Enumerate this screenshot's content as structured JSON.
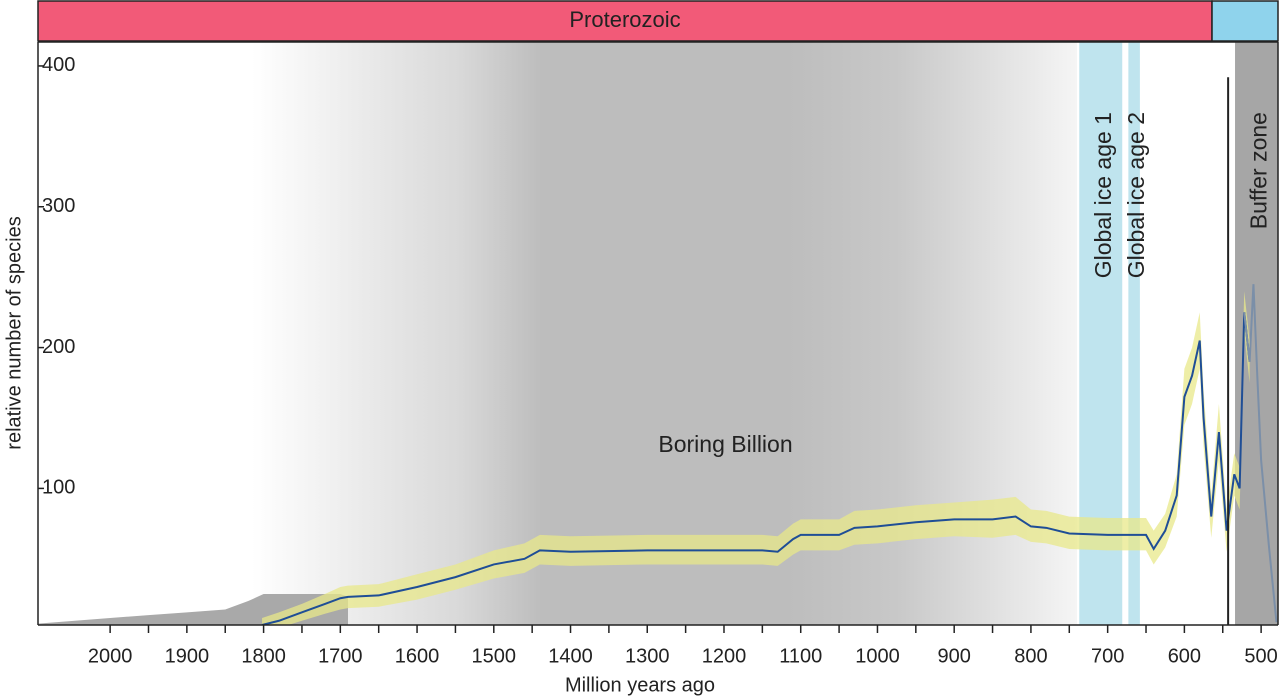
{
  "chart_data": {
    "type": "line",
    "xlabel": "Million years ago",
    "ylabel": "relative number of species",
    "xlim": [
      2094,
      478
    ],
    "ylim": [
      3,
      417
    ],
    "xticks": [
      2000,
      1900,
      1800,
      1700,
      1600,
      1500,
      1400,
      1300,
      1200,
      1100,
      1000,
      900,
      800,
      700,
      600,
      500
    ],
    "xminorticks": [
      1950,
      1850,
      1750,
      1650,
      1550,
      1450,
      1350,
      1250,
      1150,
      1050,
      950,
      850,
      750,
      650,
      550
    ],
    "yticks": [
      100,
      200,
      300,
      400
    ],
    "eras": [
      {
        "label": "Proterozoic",
        "range": [
          2094,
          564
        ],
        "color": "#f25a78"
      },
      {
        "range": [
          564,
          478
        ],
        "color": "#8fd3ec"
      }
    ],
    "shade": {
      "label": "Boring Billion",
      "range": [
        1815,
        740
      ],
      "label_x": 1198,
      "label_y": 130
    },
    "regions": [
      {
        "label": "Global ice age 1",
        "range": [
          737,
          681
        ],
        "color": "#bfe4ee"
      },
      {
        "label": "Global ice age 2",
        "range": [
          673,
          658
        ],
        "color": "#bfe4ee"
      },
      {
        "label": "Buffer zone",
        "range": [
          534,
          478
        ],
        "color": "#a6a6a6"
      }
    ],
    "area": {
      "color": "#a9a9a9",
      "x": [
        2094,
        2000,
        1950,
        1900,
        1850,
        1820,
        1800,
        1700,
        1690
      ],
      "values": [
        4,
        8,
        10,
        12,
        14,
        20,
        25,
        25,
        23
      ]
    },
    "band": {
      "color": "#e8e88a",
      "x": [
        1802,
        1780,
        1750,
        1720,
        1700,
        1690,
        1650,
        1600,
        1550,
        1500,
        1460,
        1440,
        1400,
        1300,
        1200,
        1150,
        1130,
        1110,
        1100,
        1050,
        1030,
        1000,
        950,
        900,
        850,
        820,
        800,
        780,
        750,
        700,
        650,
        640,
        625,
        610,
        600,
        590,
        580,
        575,
        565,
        555,
        545,
        535,
        528,
        522,
        515
      ],
      "upper": [
        8,
        12,
        18,
        25,
        30,
        31,
        32,
        39,
        46,
        56,
        61,
        67,
        66,
        67,
        67,
        67,
        66,
        75,
        78,
        78,
        84,
        85,
        88,
        90,
        92,
        94,
        85,
        84,
        80,
        79,
        79,
        70,
        82,
        110,
        185,
        200,
        225,
        170,
        95,
        160,
        85,
        125,
        115,
        240,
        205
      ],
      "lower": [
        0,
        1,
        6,
        11,
        14,
        15,
        16,
        21,
        28,
        36,
        40,
        46,
        45,
        46,
        46,
        46,
        45,
        53,
        56,
        56,
        60,
        61,
        64,
        66,
        65,
        67,
        62,
        61,
        57,
        56,
        56,
        46,
        58,
        80,
        145,
        160,
        185,
        130,
        65,
        120,
        55,
        95,
        85,
        210,
        175
      ]
    },
    "series": [
      {
        "color": "#1f4e96",
        "x": [
          1802,
          1780,
          1750,
          1720,
          1700,
          1690,
          1650,
          1600,
          1550,
          1500,
          1460,
          1440,
          1400,
          1300,
          1200,
          1150,
          1130,
          1110,
          1100,
          1050,
          1030,
          1000,
          950,
          900,
          850,
          820,
          800,
          780,
          750,
          700,
          650,
          640,
          625,
          610,
          600,
          590,
          580,
          575,
          565,
          555,
          545,
          535,
          528,
          522,
          515
        ],
        "values": [
          3,
          6,
          12,
          18,
          22,
          23,
          24,
          30,
          37,
          46,
          50,
          56,
          55,
          56,
          56,
          56,
          55,
          64,
          67,
          67,
          72,
          73,
          76,
          78,
          78,
          80,
          73,
          72,
          68,
          67,
          67,
          57,
          70,
          95,
          165,
          180,
          205,
          150,
          80,
          140,
          70,
          110,
          100,
          225,
          190
        ]
      },
      {
        "color": "#222222",
        "x": [
          543,
          543
        ],
        "values": [
          3,
          392
        ]
      },
      {
        "color": "#7b8fa8",
        "x": [
          522,
          515,
          510,
          505,
          500,
          490,
          480
        ],
        "values": [
          225,
          190,
          245,
          180,
          120,
          60,
          5
        ]
      }
    ]
  }
}
